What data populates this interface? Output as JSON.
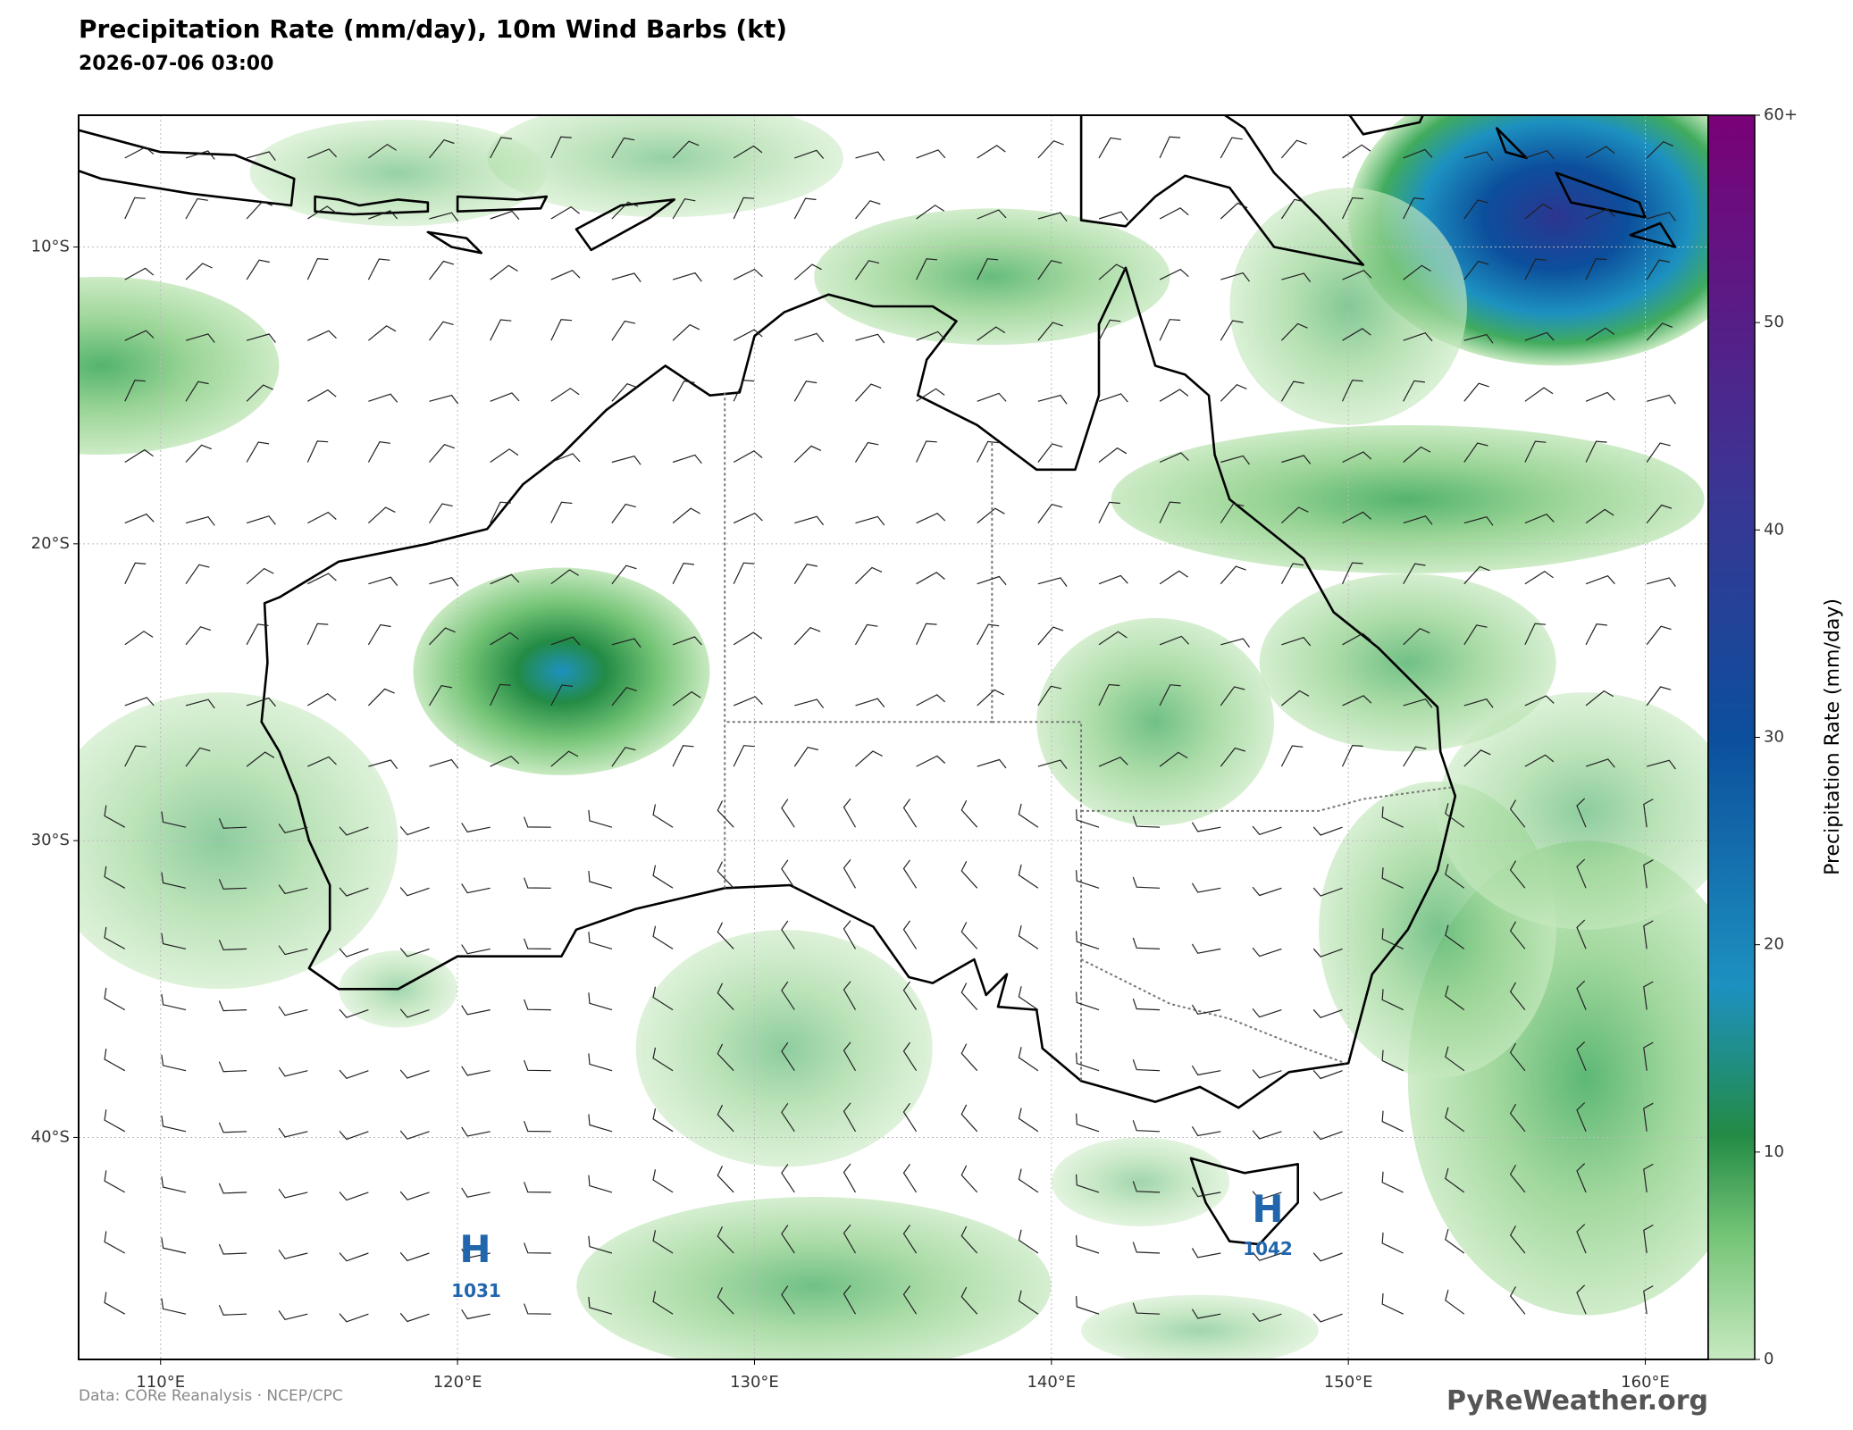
{
  "header": {
    "title": "Precipitation Rate (mm/day), 10m Wind Barbs (kt)",
    "subtitle": "2026-07-06 03:00"
  },
  "map": {
    "lon_ticks": [
      {
        "value": 110,
        "label": "110°E"
      },
      {
        "value": 120,
        "label": "120°E"
      },
      {
        "value": 130,
        "label": "130°E"
      },
      {
        "value": 140,
        "label": "140°E"
      },
      {
        "value": 150,
        "label": "150°E"
      },
      {
        "value": 160,
        "label": "160°E"
      }
    ],
    "lat_ticks": [
      {
        "value": -10,
        "label": "10°S"
      },
      {
        "value": -20,
        "label": "20°S"
      },
      {
        "value": -30,
        "label": "30°S"
      },
      {
        "value": -40,
        "label": "40°S"
      }
    ],
    "highs": [
      {
        "symbol": "H",
        "pressure": "1031"
      },
      {
        "symbol": "H",
        "pressure": "1042"
      }
    ]
  },
  "colorbar": {
    "label": "Precipitation Rate (mm/day)",
    "lim": [
      0,
      60
    ],
    "ticks": [
      0,
      10,
      20,
      30,
      40,
      50,
      {
        "value": 60,
        "label": "60+"
      }
    ]
  },
  "footer": {
    "credit": "Data: CORe Reanalysis  ·  NCEP/CPC",
    "brand": "PyReWeather.org"
  }
}
